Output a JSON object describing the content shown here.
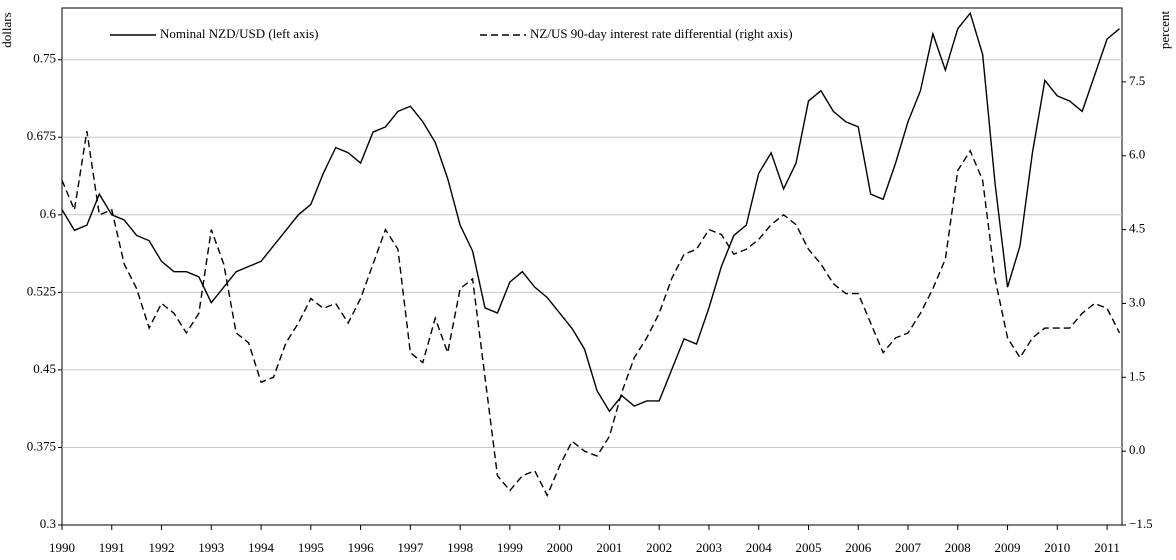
{
  "chart_data": {
    "type": "line",
    "legend": "top",
    "grid": true,
    "y_label": "dollars",
    "y2_label": "percent",
    "x": [
      1990,
      1990.25,
      1990.5,
      1990.75,
      1991,
      1991.25,
      1991.5,
      1991.75,
      1992,
      1992.25,
      1992.5,
      1992.75,
      1993,
      1993.25,
      1993.5,
      1993.75,
      1994,
      1994.25,
      1994.5,
      1994.75,
      1995,
      1995.25,
      1995.5,
      1995.75,
      1996,
      1996.25,
      1996.5,
      1996.75,
      1997,
      1997.25,
      1997.5,
      1997.75,
      1998,
      1998.25,
      1998.5,
      1998.75,
      1999,
      1999.25,
      1999.5,
      1999.75,
      2000,
      2000.25,
      2000.5,
      2000.75,
      2001,
      2001.25,
      2001.5,
      2001.75,
      2002,
      2002.25,
      2002.5,
      2002.75,
      2003,
      2003.25,
      2003.5,
      2003.75,
      2004,
      2004.25,
      2004.5,
      2004.75,
      2005,
      2005.25,
      2005.5,
      2005.75,
      2006,
      2006.25,
      2006.5,
      2006.75,
      2007,
      2007.25,
      2007.5,
      2007.75,
      2008,
      2008.25,
      2008.5,
      2008.75,
      2009,
      2009.25,
      2009.5,
      2009.75,
      2010,
      2010.25,
      2010.5,
      2010.75,
      2011,
      2011.25
    ],
    "series": [
      {
        "name": "Nominal NZD/USD (left axis)",
        "color": "#000000",
        "dash": "solid",
        "values": [
          0.605,
          0.585,
          0.59,
          0.62,
          0.6,
          0.595,
          0.58,
          0.575,
          0.555,
          0.545,
          0.545,
          0.54,
          0.515,
          0.53,
          0.545,
          0.55,
          0.555,
          0.57,
          0.585,
          0.6,
          0.61,
          0.64,
          0.665,
          0.66,
          0.65,
          0.68,
          0.685,
          0.7,
          0.705,
          0.69,
          0.67,
          0.635,
          0.59,
          0.565,
          0.51,
          0.505,
          0.535,
          0.545,
          0.53,
          0.52,
          0.505,
          0.49,
          0.47,
          0.43,
          0.41,
          0.425,
          0.415,
          0.42,
          0.42,
          0.45,
          0.48,
          0.475,
          0.51,
          0.55,
          0.58,
          0.59,
          0.64,
          0.66,
          0.625,
          0.65,
          0.71,
          0.72,
          0.7,
          0.69,
          0.685,
          0.62,
          0.615,
          0.65,
          0.69,
          0.72,
          0.775,
          0.74,
          0.78,
          0.795,
          0.755,
          0.63,
          0.53,
          0.57,
          0.66,
          0.73,
          0.715,
          0.71,
          0.7,
          0.735,
          0.77,
          0.78
        ]
      },
      {
        "name": "NZ/US 90-day interest rate differential (right axis)",
        "color": "#000000",
        "dash": "dashed",
        "axis": "y2",
        "values": [
          5.5,
          4.9,
          6.5,
          4.8,
          4.9,
          3.8,
          3.3,
          2.5,
          3.0,
          2.8,
          2.4,
          2.8,
          4.5,
          3.8,
          2.4,
          2.2,
          1.4,
          1.5,
          2.2,
          2.6,
          3.1,
          2.9,
          3.0,
          2.6,
          3.1,
          3.8,
          4.5,
          4.1,
          2.0,
          1.8,
          2.7,
          2.0,
          3.3,
          3.5,
          1.5,
          -0.5,
          -0.8,
          -0.5,
          -0.4,
          -0.9,
          -0.3,
          0.2,
          0.0,
          -0.1,
          0.3,
          1.2,
          1.9,
          2.3,
          2.8,
          3.5,
          4.0,
          4.1,
          4.5,
          4.4,
          4.0,
          4.1,
          4.3,
          4.6,
          4.8,
          4.6,
          4.1,
          3.8,
          3.4,
          3.2,
          3.2,
          2.6,
          2.0,
          2.3,
          2.4,
          2.8,
          3.3,
          3.9,
          5.7,
          6.1,
          5.5,
          3.5,
          2.3,
          1.9,
          2.3,
          2.5,
          2.5,
          2.5,
          2.8,
          3.0,
          2.9,
          2.4
        ]
      }
    ],
    "xlim": [
      1990,
      2011.3
    ],
    "xticks": [
      1990,
      1991,
      1992,
      1993,
      1994,
      1995,
      1996,
      1997,
      1998,
      1999,
      2000,
      2001,
      2002,
      2003,
      2004,
      2005,
      2006,
      2007,
      2008,
      2009,
      2010,
      2011
    ],
    "ylim": [
      0.3,
      0.8
    ],
    "yticks": [
      0.3,
      0.375,
      0.45,
      0.525,
      0.6,
      0.675,
      0.75
    ],
    "y2lim": [
      -1.5,
      9.0
    ],
    "y2ticks": [
      {
        "value": -1.5,
        "label": "−1.5"
      },
      {
        "value": 0,
        "label": "0.0"
      },
      1.5,
      {
        "value": 3,
        "label": "3.0"
      },
      4.5,
      {
        "value": 6,
        "label": "6.0"
      },
      7.5
    ]
  }
}
